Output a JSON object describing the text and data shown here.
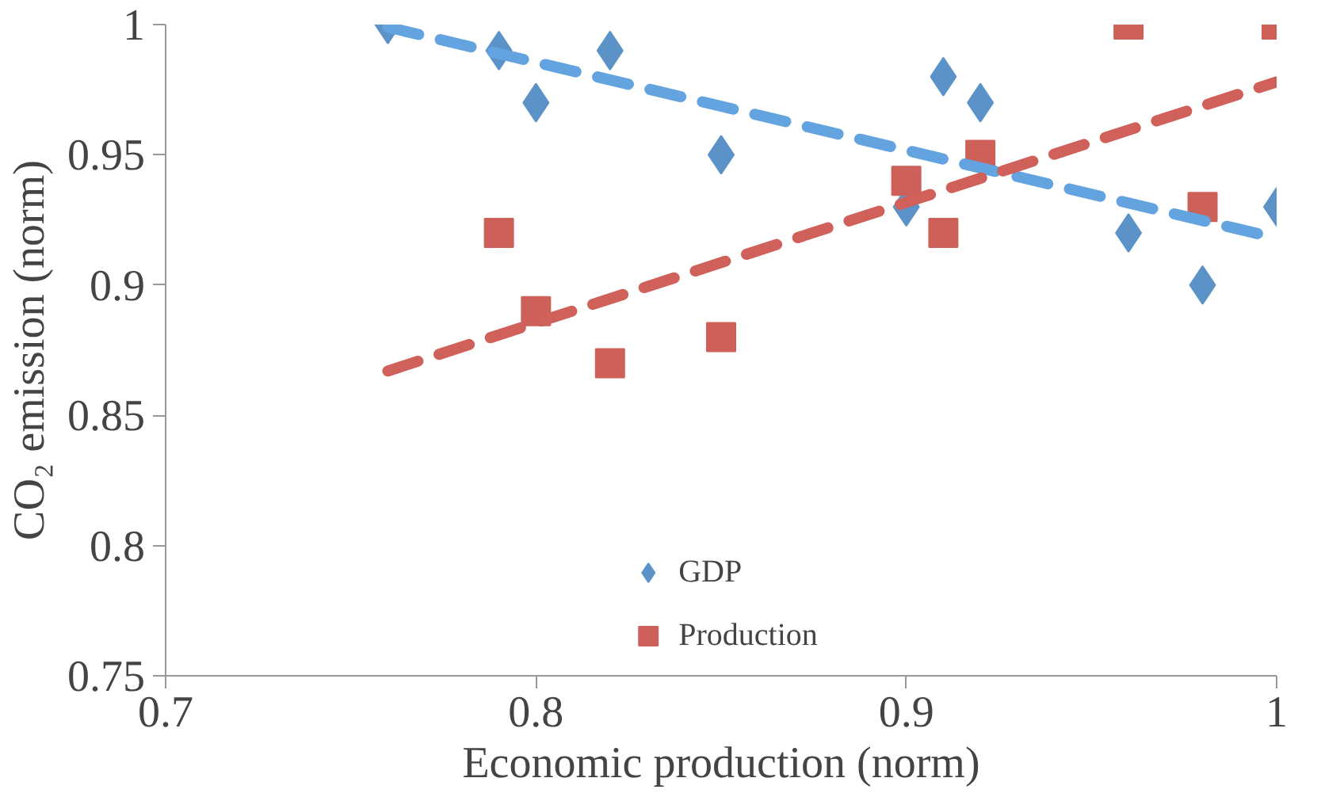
{
  "chart_data": {
    "type": "scatter",
    "xlabel": "Economic production (norm)",
    "ylabel": "CO₂ emission (norm)",
    "xlim": [
      0.7,
      1.0
    ],
    "xticks": [
      0.7,
      0.8,
      0.9,
      1
    ],
    "ylim": [
      0.75,
      1.0
    ],
    "yticks": [
      0.75,
      0.8,
      0.85,
      0.9,
      0.95,
      1
    ],
    "grid": false,
    "legend": "bottom",
    "series": [
      {
        "name": "GDP",
        "color": "#5b93c8",
        "marker": "diamond",
        "x": [
          0.76,
          0.79,
          0.8,
          0.82,
          0.85,
          0.9,
          0.91,
          0.92,
          0.96,
          0.98,
          1.0
        ],
        "values": [
          1.0,
          0.99,
          0.97,
          0.99,
          0.95,
          0.93,
          0.98,
          0.97,
          0.92,
          0.9,
          0.93
        ]
      },
      {
        "name": "Production",
        "color": "#cd6159",
        "marker": "square",
        "x": [
          0.79,
          0.8,
          0.82,
          0.85,
          0.9,
          0.91,
          0.92,
          0.96,
          0.98,
          1.0
        ],
        "values": [
          0.92,
          0.89,
          0.87,
          0.88,
          0.94,
          0.92,
          0.95,
          1.0,
          0.93,
          1.0
        ]
      },
      {
        "type": "line",
        "color": "#62a3e0",
        "line_style": "dashed",
        "x": [
          0.76,
          1.0
        ],
        "values": [
          0.999,
          0.918
        ]
      },
      {
        "type": "line",
        "color": "#d0605a",
        "line_style": "dashed",
        "x": [
          0.76,
          1.0
        ],
        "values": [
          0.867,
          0.978
        ]
      }
    ]
  }
}
